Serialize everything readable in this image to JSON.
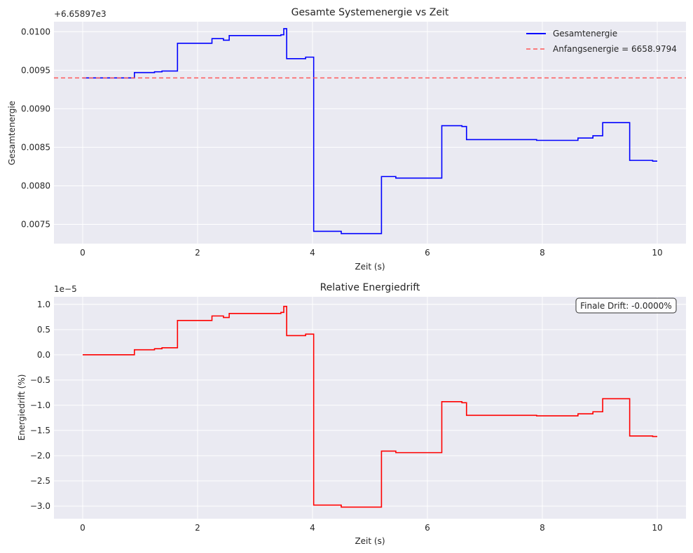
{
  "chart_data": [
    {
      "type": "line",
      "title": "Gesamte Systemenergie vs Zeit",
      "xlabel": "Zeit (s)",
      "ylabel": "Gesamtenergie",
      "offset_label": "+6.65897e3",
      "offset_value": 6658.97,
      "xlim": [
        -0.5,
        10.5
      ],
      "ylim": [
        0.00725,
        0.01013
      ],
      "x_ticks": [
        0,
        2,
        4,
        6,
        8,
        10
      ],
      "x_tick_labels": [
        "0",
        "2",
        "4",
        "6",
        "8",
        "10"
      ],
      "y_ticks": [
        0.0075,
        0.008,
        0.0085,
        0.009,
        0.0095,
        0.01
      ],
      "y_tick_labels": [
        "0.0075",
        "0.0080",
        "0.0085",
        "0.0090",
        "0.0095",
        "0.0100"
      ],
      "grid": true,
      "legend_position": "top-right",
      "series": [
        {
          "name": "Gesamtenergie",
          "color": "#0000ff",
          "style": "solid",
          "x": [
            0,
            0.9,
            0.9,
            1.25,
            1.25,
            1.38,
            1.38,
            1.65,
            1.65,
            2.25,
            2.25,
            2.45,
            2.45,
            2.55,
            2.55,
            3.45,
            3.45,
            3.5,
            3.5,
            3.55,
            3.55,
            3.88,
            3.88,
            4.02,
            4.02,
            4.5,
            4.5,
            5.2,
            5.2,
            5.45,
            5.45,
            6.25,
            6.25,
            6.6,
            6.6,
            6.68,
            6.68,
            7.9,
            7.9,
            8.62,
            8.62,
            8.88,
            8.88,
            9.05,
            9.05,
            9.52,
            9.52,
            9.92,
            9.92,
            10.0
          ],
          "y": [
            0.0094,
            0.0094,
            0.00947,
            0.00947,
            0.00948,
            0.00948,
            0.00949,
            0.00949,
            0.00985,
            0.00985,
            0.00991,
            0.00991,
            0.00989,
            0.00989,
            0.00995,
            0.00995,
            0.00996,
            0.00996,
            0.01004,
            0.01004,
            0.00965,
            0.00965,
            0.00967,
            0.00967,
            0.00741,
            0.00741,
            0.00738,
            0.00738,
            0.00812,
            0.00812,
            0.0081,
            0.0081,
            0.00878,
            0.00878,
            0.00877,
            0.00877,
            0.0086,
            0.0086,
            0.00859,
            0.00859,
            0.00862,
            0.00862,
            0.00865,
            0.00865,
            0.00882,
            0.00882,
            0.00833,
            0.00833,
            0.00832,
            0.00832
          ]
        },
        {
          "name": "Anfangsenergie = 6658.9794",
          "color": "#ff5555",
          "style": "dashed",
          "hline": 0.0094
        }
      ]
    },
    {
      "type": "line",
      "title": "Relative Energiedrift",
      "xlabel": "Zeit (s)",
      "ylabel": "Energiedrift (%)",
      "offset_label": "1e−5",
      "xlim": [
        -0.5,
        10.5
      ],
      "ylim": [
        -3.25,
        1.15
      ],
      "x_ticks": [
        0,
        2,
        4,
        6,
        8,
        10
      ],
      "x_tick_labels": [
        "0",
        "2",
        "4",
        "6",
        "8",
        "10"
      ],
      "y_ticks": [
        -3.0,
        -2.5,
        -2.0,
        -1.5,
        -1.0,
        -0.5,
        0.0,
        0.5,
        1.0
      ],
      "y_tick_labels": [
        "−3.0",
        "−2.5",
        "−2.0",
        "−1.5",
        "−1.0",
        "−0.5",
        "0.0",
        "0.5",
        "1.0"
      ],
      "grid": true,
      "annotation": "Finale Drift: -0.0000%",
      "series": [
        {
          "color": "#ff0000",
          "style": "solid",
          "x": [
            0,
            0.9,
            0.9,
            1.25,
            1.25,
            1.38,
            1.38,
            1.65,
            1.65,
            2.25,
            2.25,
            2.45,
            2.45,
            2.55,
            2.55,
            3.45,
            3.45,
            3.5,
            3.5,
            3.55,
            3.55,
            3.88,
            3.88,
            4.02,
            4.02,
            4.5,
            4.5,
            5.2,
            5.2,
            5.45,
            5.45,
            6.25,
            6.25,
            6.6,
            6.6,
            6.68,
            6.68,
            7.9,
            7.9,
            8.62,
            8.62,
            8.88,
            8.88,
            9.05,
            9.05,
            9.52,
            9.52,
            9.92,
            9.92,
            10.0
          ],
          "y": [
            0.0,
            0.0,
            0.1,
            0.1,
            0.12,
            0.12,
            0.14,
            0.14,
            0.68,
            0.68,
            0.77,
            0.77,
            0.74,
            0.74,
            0.82,
            0.82,
            0.84,
            0.84,
            0.96,
            0.96,
            0.38,
            0.38,
            0.41,
            0.41,
            -2.98,
            -2.98,
            -3.02,
            -3.02,
            -1.91,
            -1.91,
            -1.94,
            -1.94,
            -0.93,
            -0.93,
            -0.95,
            -0.95,
            -1.2,
            -1.2,
            -1.21,
            -1.21,
            -1.17,
            -1.17,
            -1.13,
            -1.13,
            -0.87,
            -0.87,
            -1.61,
            -1.61,
            -1.62,
            -1.62
          ]
        }
      ]
    }
  ]
}
